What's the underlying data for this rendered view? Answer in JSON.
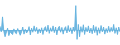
{
  "chart_data": {
    "type": "area",
    "values": [
      1.0,
      -0.5,
      3.5,
      -0.3,
      -1.8,
      -0.8,
      0.5,
      -1.5,
      -0.4,
      -0.9,
      -1.2,
      0.3,
      -0.7,
      -1.0,
      0.4,
      -0.5,
      -1.4,
      -0.6,
      0.8,
      -1.1,
      0.2,
      -0.8,
      -0.3,
      0.9,
      -1.3,
      0.5,
      -0.6,
      1.1,
      -0.4,
      0.7,
      -1.0,
      0.3,
      -0.8,
      0.6,
      -1.2,
      0.4,
      0.9,
      -0.5,
      1.3,
      -0.9,
      0.6,
      -0.4,
      1.1,
      -0.7,
      0.8,
      -1.3,
      0.5,
      1.0,
      -0.6,
      0.7,
      -1.1,
      0.4,
      0.9,
      -0.8,
      1.2,
      -0.5,
      0.6,
      -1.0,
      0.8,
      -0.4,
      6.5,
      -2.5,
      1.5,
      -1.8,
      0.9,
      -0.6,
      1.4,
      -1.2,
      0.7,
      -0.5,
      1.1,
      -0.8,
      0.5,
      -1.0,
      1.3,
      -0.7,
      0.9,
      -1.4,
      0.6,
      -0.9,
      1.2,
      -0.5,
      0.8,
      -1.1,
      0.4,
      -0.7,
      1.0,
      -0.6,
      0.7,
      -0.4,
      1.5,
      -0.9,
      0.6,
      -1.2,
      0.8,
      -0.5
    ],
    "color": "#5baddc",
    "xlim": [
      0,
      95
    ],
    "ylim": [
      -4.0,
      8.0
    ],
    "tick_labels": false,
    "grid": false
  }
}
